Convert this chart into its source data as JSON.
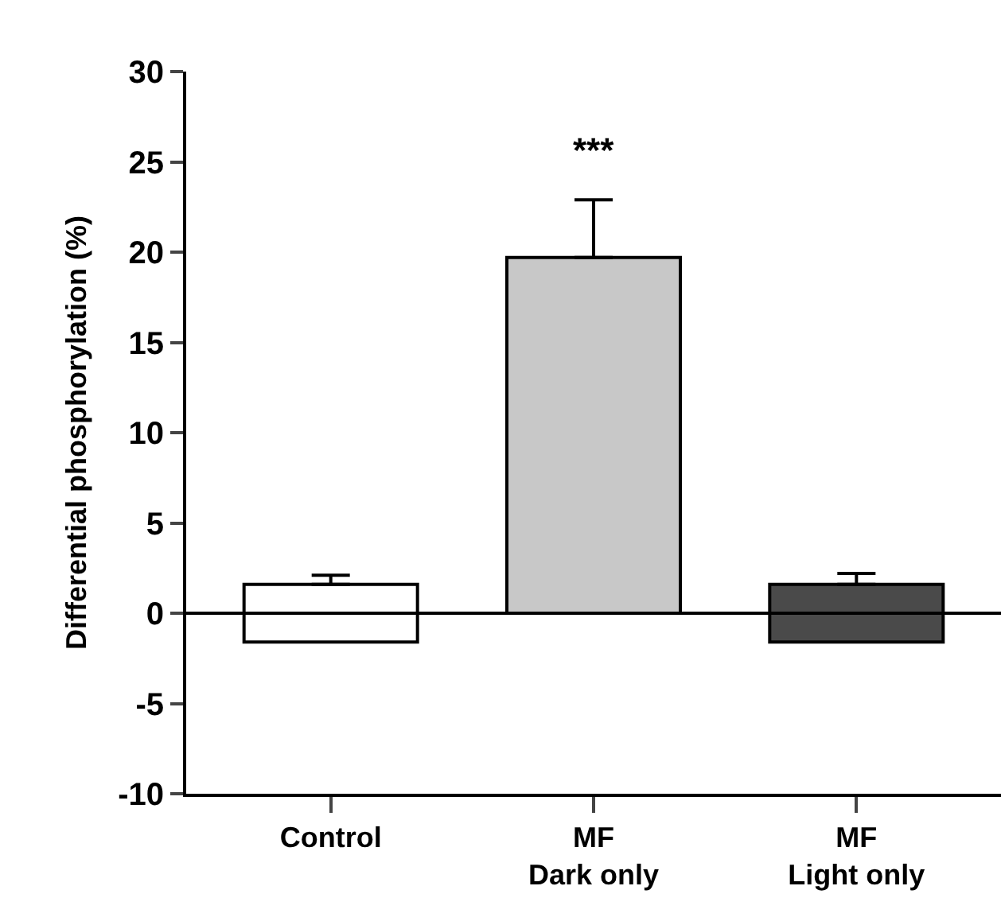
{
  "chart_data": {
    "type": "bar",
    "ylabel": "Differential phosphorylation (%)",
    "categories": [
      "Control",
      "MF\nDark only",
      "MF\nLight only"
    ],
    "values": [
      3.2,
      19.7,
      3.2
    ],
    "base": [
      -1.6,
      0,
      -1.6
    ],
    "colors": [
      "#ffffff",
      "#c8c8c8",
      "#4a4a4a"
    ],
    "errors": [
      [
        1.6,
        2.1
      ],
      [
        19.7,
        22.9
      ],
      [
        1.6,
        2.2
      ]
    ],
    "ylim": [
      -10,
      30
    ],
    "yticks": [
      -10,
      -5,
      0,
      5,
      10,
      15,
      20,
      25,
      30
    ],
    "ref_lines": [
      {
        "axis": "y",
        "value": 0,
        "color": "#000000"
      }
    ],
    "annotations": [
      "***"
    ]
  }
}
